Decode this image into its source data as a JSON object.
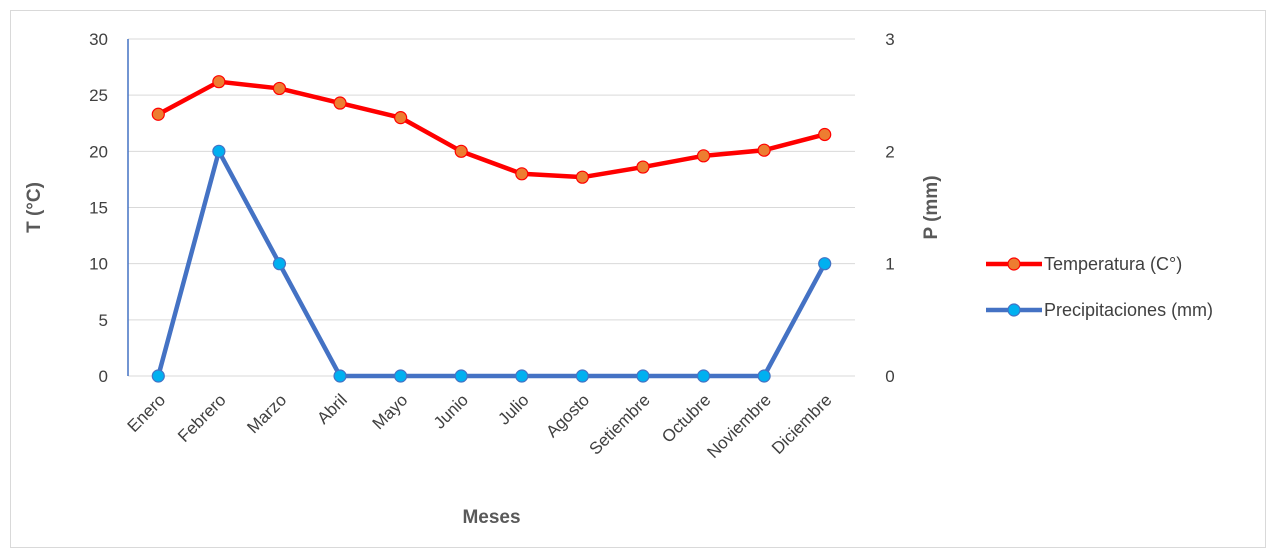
{
  "chart_data": {
    "type": "line",
    "title": "",
    "xlabel": "Meses",
    "ylabel": "T (°C)",
    "y2label": "P (mm)",
    "categories": [
      "Enero",
      "Febrero",
      "Marzo",
      "Abril",
      "Mayo",
      "Junio",
      "Julio",
      "Agosto",
      "Setiembre",
      "Octubre",
      "Noviembre",
      "Diciembre"
    ],
    "ylim": [
      0,
      30
    ],
    "y2lim": [
      0,
      3
    ],
    "yticks": [
      "0",
      "5",
      "10",
      "15",
      "20",
      "25",
      "30"
    ],
    "y2ticks": [
      "0",
      "1",
      "2",
      "3"
    ],
    "grid": true,
    "legend_position": "right",
    "series": [
      {
        "name": "Temperatura (C°)",
        "axis": "left",
        "color": "#ff0000",
        "marker_color": "#ed7d31",
        "values": [
          23.3,
          26.2,
          25.6,
          24.3,
          23.0,
          20.0,
          18.0,
          17.7,
          18.6,
          19.6,
          20.1,
          21.5
        ]
      },
      {
        "name": "Precipitaciones (mm)",
        "axis": "right",
        "color": "#4472c4",
        "marker_color": "#00b0f0",
        "values": [
          0,
          2,
          1,
          0,
          0,
          0,
          0,
          0,
          0,
          0,
          0,
          1
        ]
      }
    ]
  }
}
